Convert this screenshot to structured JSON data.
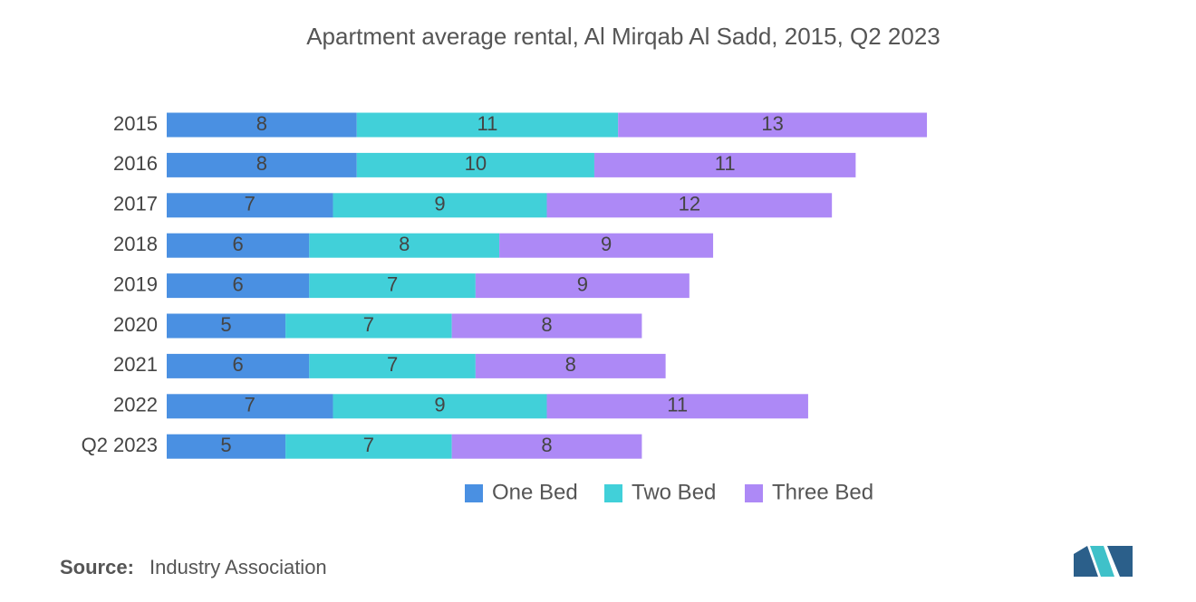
{
  "chart_data": {
    "type": "stacked-barh",
    "title": "Apartment average rental, Al Mirqab Al Sadd, 2015, Q2 2023",
    "categories": [
      "2015",
      "2016",
      "2017",
      "2018",
      "2019",
      "2020",
      "2021",
      "2022",
      "Q2 2023"
    ],
    "series": [
      {
        "name": "One Bed",
        "color": "#4a90e2",
        "values": [
          8,
          8,
          7,
          6,
          6,
          5,
          6,
          7,
          5
        ]
      },
      {
        "name": "Two Bed",
        "color": "#41d0d9",
        "values": [
          11,
          10,
          9,
          8,
          7,
          7,
          7,
          9,
          7
        ]
      },
      {
        "name": "Three Bed",
        "color": "#ad89f6",
        "values": [
          13,
          11,
          12,
          9,
          9,
          8,
          8,
          11,
          8
        ]
      }
    ]
  },
  "source": {
    "label": "Source:",
    "text": "Industry Association"
  }
}
